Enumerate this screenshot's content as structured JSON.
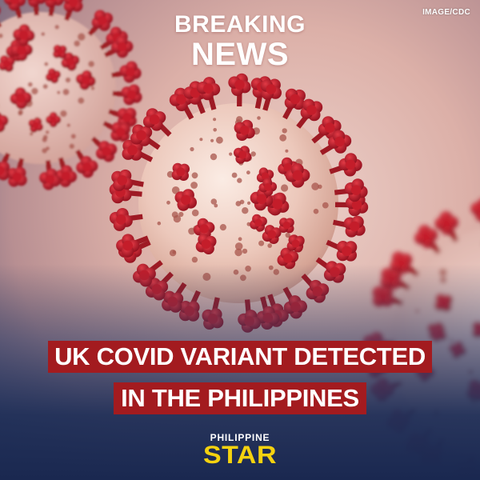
{
  "credit": "IMAGE/CDC",
  "banner": {
    "line1": "BREAKING",
    "line2": "NEWS"
  },
  "headline": {
    "line1": "UK COVID VARIANT DETECTED",
    "line2": "IN THE PHILIPPINES"
  },
  "brand": {
    "line1": "PHILIPPINE",
    "line2": "STAR"
  },
  "colors": {
    "headline_band": "#a31b1f",
    "brand_star": "#f5d20f",
    "footer_blue": "#1f2f58",
    "background_pink": "#e7c4bd",
    "spike_red": "#c41d2a"
  },
  "illustration": {
    "subject": "coronavirus-particle",
    "icon": "virus-icon"
  }
}
